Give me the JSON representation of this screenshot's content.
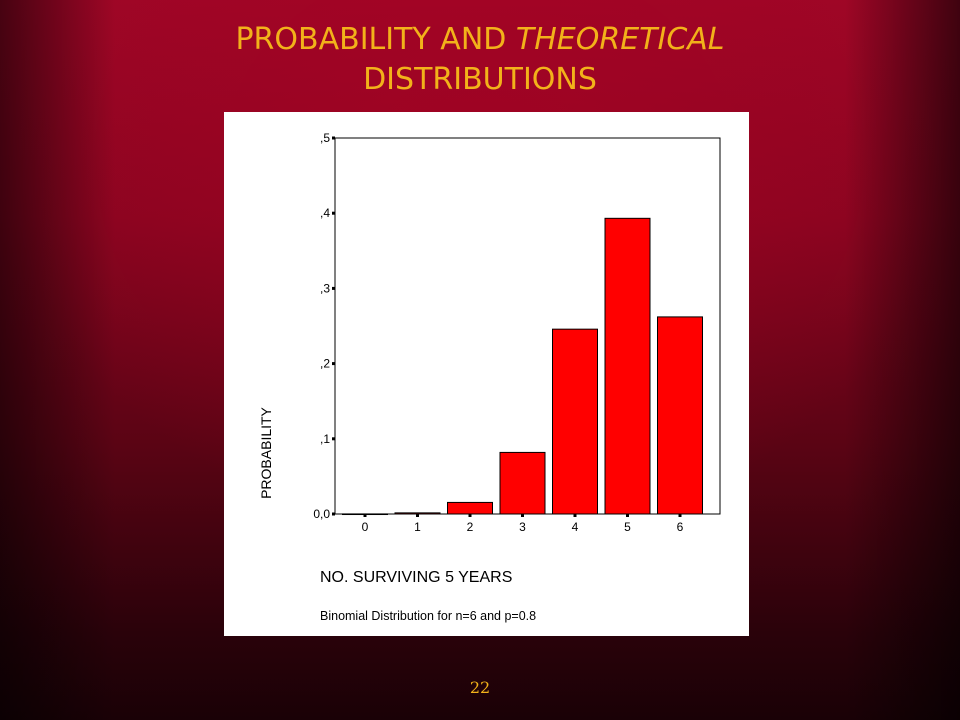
{
  "slide": {
    "title_part1": "PROBABILITY AND ",
    "title_part2": "THEORETICAL",
    "title_line2": "DISTRIBUTIONS",
    "page_number": "22"
  },
  "colors": {
    "bar_fill": "#ff0000",
    "title_color": "#f2b21a",
    "background": "#8a0520"
  },
  "chart_data": {
    "type": "bar",
    "categories": [
      "0",
      "1",
      "2",
      "3",
      "4",
      "5",
      "6"
    ],
    "values": [
      0.0001,
      0.0015,
      0.0154,
      0.0819,
      0.2458,
      0.3932,
      0.2621
    ],
    "xlabel": "NO. SURVIVING 5 YEARS",
    "ylabel": "PROBABILITY",
    "ylim": [
      0,
      0.5
    ],
    "yticks": [
      0,
      0.1,
      0.2,
      0.3,
      0.4,
      0.5
    ],
    "ytick_labels": [
      "0,0",
      ",1",
      ",2",
      ",3",
      ",4",
      ",5"
    ],
    "caption": "Binomial Distribution for n=6 and p=0.8",
    "grid": false
  }
}
